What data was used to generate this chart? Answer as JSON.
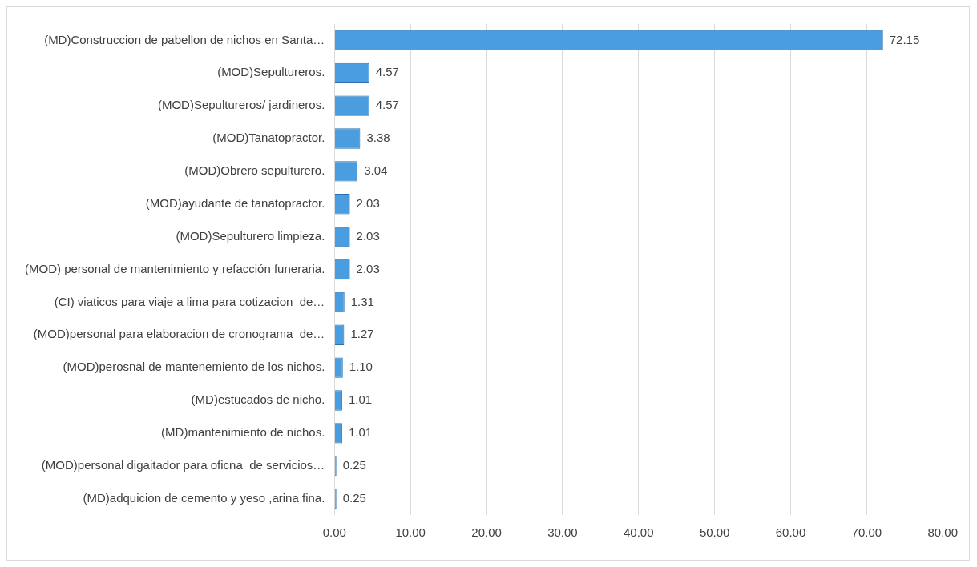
{
  "chart_data": {
    "type": "bar",
    "orientation": "horizontal",
    "categories": [
      "(MD)Construccion de pabellon de nichos en Santa…",
      "(MOD)Sepultureros.",
      "(MOD)Sepultureros/ jardineros.",
      "(MOD)Tanatopractor.",
      "(MOD)Obrero sepulturero.",
      "(MOD)ayudante de tanatopractor.",
      "(MOD)Sepulturero limpieza.",
      "(MOD) personal de mantenimiento y refacción funeraria.",
      "(CI) viaticos para viaje a lima para cotizacion  de…",
      "(MOD)personal para elaboracion de cronograma  de…",
      "(MOD)perosnal de mantenemiento de los nichos.",
      "(MD)estucados de nicho.",
      "(MD)mantenimiento de nichos.",
      "(MOD)personal digaitador para oficna  de servicios…",
      "(MD)adquicion de cemento y yeso ,arina fina."
    ],
    "values": [
      72.15,
      4.57,
      4.57,
      3.38,
      3.04,
      2.03,
      2.03,
      2.03,
      1.31,
      1.27,
      1.1,
      1.01,
      1.01,
      0.25,
      0.25
    ],
    "value_labels": [
      "72.15",
      "4.57",
      "4.57",
      "3.38",
      "3.04",
      "2.03",
      "2.03",
      "2.03",
      "1.31",
      "1.27",
      "1.10",
      "1.01",
      "1.01",
      "0.25",
      "0.25"
    ],
    "color": "#4a9ee0",
    "xlim": [
      0,
      80
    ],
    "xticks": [
      {
        "value": 0,
        "label": "0.00"
      },
      {
        "value": 10,
        "label": "10.00"
      },
      {
        "value": 20,
        "label": "20.00"
      },
      {
        "value": 30,
        "label": "30.00"
      },
      {
        "value": 40,
        "label": "40.00"
      },
      {
        "value": 50,
        "label": "50.00"
      },
      {
        "value": 60,
        "label": "60.00"
      },
      {
        "value": 70,
        "label": "70.00"
      },
      {
        "value": 80,
        "label": "80.00"
      }
    ],
    "grid": "x",
    "legend": false
  }
}
